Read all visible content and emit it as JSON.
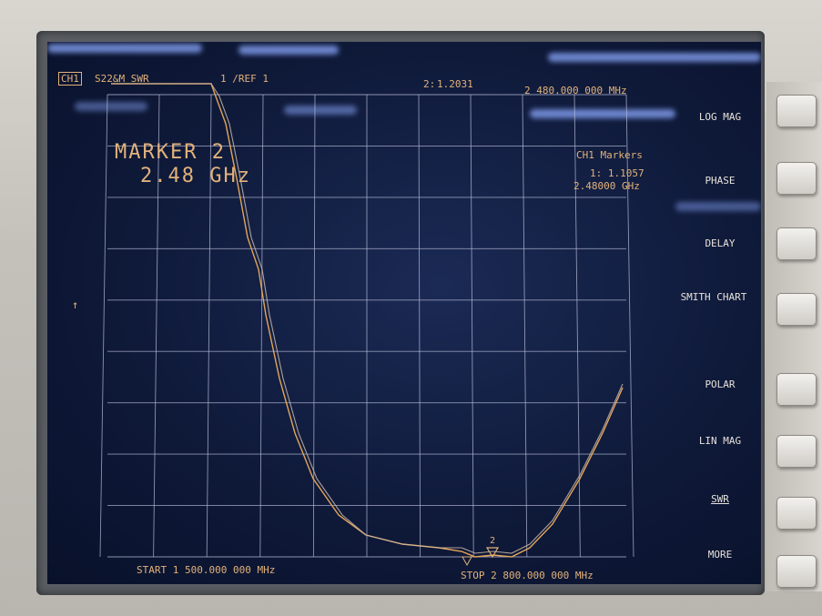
{
  "header": {
    "channel": "CH1",
    "measurement": "S22&M SWR",
    "scale": "1  /REF 1",
    "marker_readout_label": "2:",
    "marker_readout_value": "1.2031",
    "marker_readout_freq": "2 480.000 000 MHz"
  },
  "marker_box": {
    "line1": "MARKER 2",
    "line2": "2.48 GHz"
  },
  "markers_panel": {
    "title": "CH1 Markers",
    "line1": "1: 1.1057",
    "line2": "2.48000 GHz"
  },
  "footer": {
    "start": "START 1 500.000 000 MHz",
    "stop": "STOP 2 800.000 000 MHz"
  },
  "softkeys": [
    "LOG MAG",
    "PHASE",
    "DELAY",
    "SMITH CHART",
    "POLAR",
    "LIN MAG",
    "SWR",
    "MORE"
  ],
  "marker_label": "2",
  "ref_arrow": "↑",
  "colors": {
    "trace": "#e2a55a",
    "grid": "#b8bcd8",
    "text": "#e2b27a",
    "screen": "#0f1a3a"
  }
}
